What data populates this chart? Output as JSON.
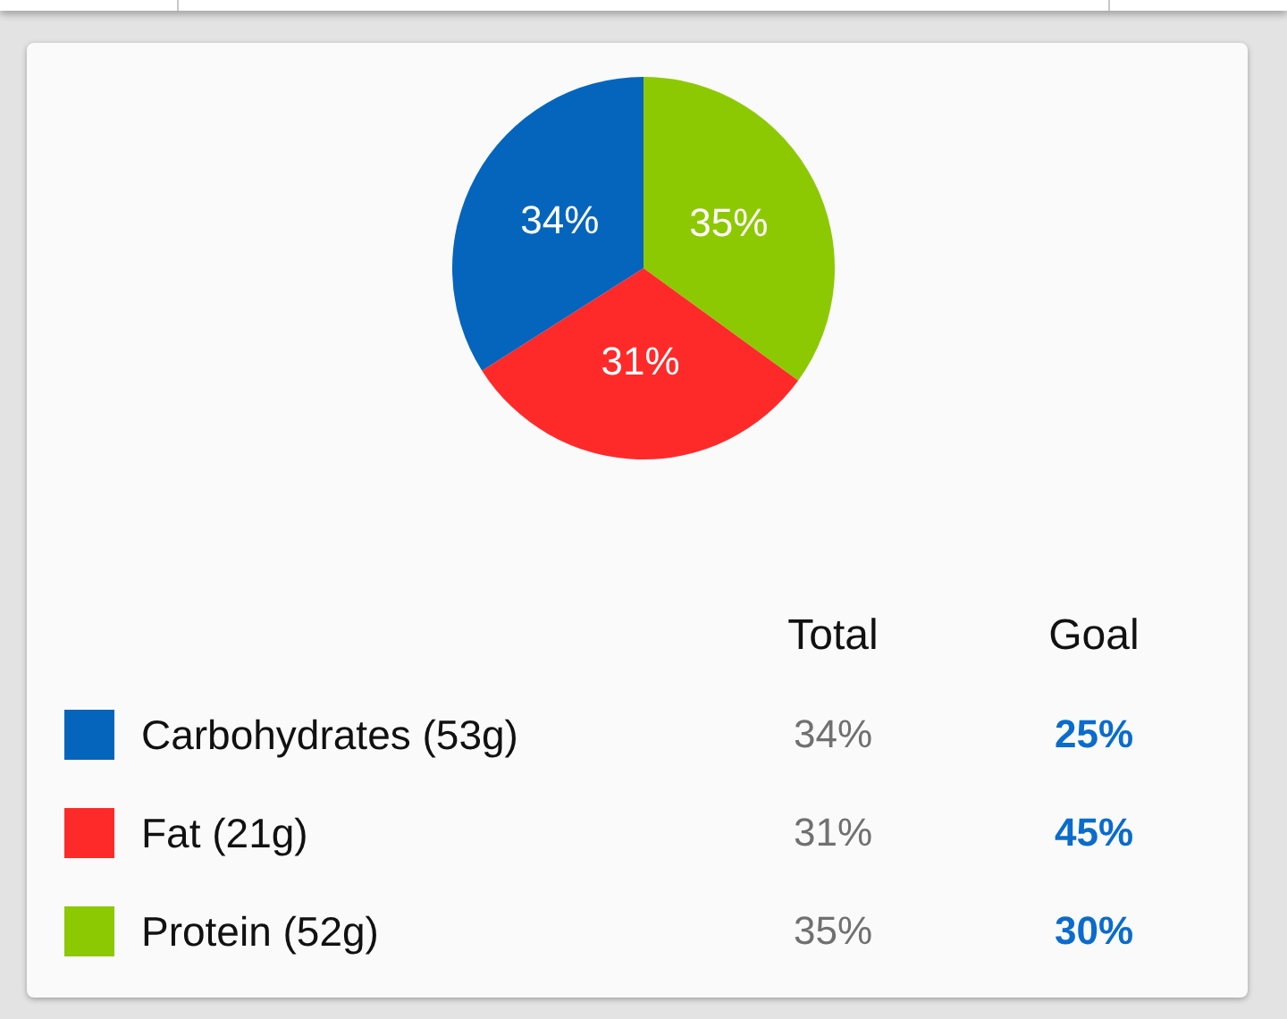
{
  "chart_data": [
    {
      "type": "pie",
      "categories": [
        "Carbohydrates (53g)",
        "Fat (21g)",
        "Protein (52g)"
      ],
      "colors": [
        "#0565bd",
        "#fe2a2a",
        "#8dc902"
      ],
      "series": [
        {
          "name": "Total",
          "values": [
            34,
            31,
            35
          ],
          "value_labels": [
            "34%",
            "31%",
            "35%"
          ]
        }
      ],
      "legend": "bottom"
    },
    {
      "type": "other",
      "series": [
        {
          "name": "Goal",
          "values": [
            25,
            45,
            30
          ],
          "value_labels": [
            "25%",
            "45%",
            "30%"
          ]
        }
      ]
    }
  ]
}
